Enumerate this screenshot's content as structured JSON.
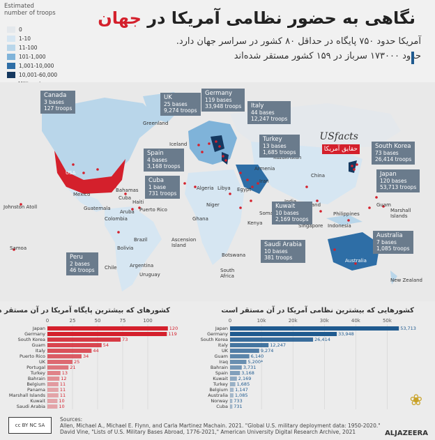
{
  "legend": {
    "title_line1": "Estimated",
    "title_line2": "number of troops",
    "items": [
      {
        "label": "0",
        "color": "#e4e8ec"
      },
      {
        "label": "1-10",
        "color": "#d6e6f2"
      },
      {
        "label": "11-100",
        "color": "#b9d6ea"
      },
      {
        "label": "101-1,000",
        "color": "#7fb3d9"
      },
      {
        "label": "1,001-10,000",
        "color": "#2e6ea6"
      },
      {
        "label": "10,001-60,000",
        "color": "#15385f"
      }
    ],
    "bases_label": "Military bases",
    "usa_color": "#d4202c"
  },
  "header": {
    "title_main": "نگاهی به حضور نظامی آمریکا در",
    "title_highlight": "جهان",
    "line1": "آمریکا حدود ۷۵۰ پایگاه در حداقل ۸۰ کشور در سراسر جهان دارد.",
    "line2": "حدود ۱۷۳۰۰۰ سرباز در ۱۵۹ کشور مستقر شده‌اند"
  },
  "map": {
    "cards": [
      {
        "country": "Canada",
        "bases": "3 bases",
        "troops": "127 troops"
      },
      {
        "country": "UK",
        "bases": "25 bases",
        "troops": "9,274 troops"
      },
      {
        "country": "Germany",
        "bases": "119 bases",
        "troops": "33,948 troops"
      },
      {
        "country": "Italy",
        "bases": "44 bases",
        "troops": "12,247 troops"
      },
      {
        "country": "Turkey",
        "bases": "13 bases",
        "troops": "1,685 troops"
      },
      {
        "country": "South Korea",
        "bases": "73 bases",
        "troops": "26,414 troops"
      },
      {
        "country": "Spain",
        "bases": "4 bases",
        "troops": "3,168 troops"
      },
      {
        "country": "Cuba",
        "bases": "1 base",
        "troops": "731 troops"
      },
      {
        "country": "Japan",
        "bases": "120 bases",
        "troops": "53,713 troops"
      },
      {
        "country": "Kuwait",
        "bases": "10 bases",
        "troops": "2,169 troops"
      },
      {
        "country": "Saudi Arabia",
        "bases": "10 bases",
        "troops": "381 troops"
      },
      {
        "country": "Australia",
        "bases": "7 bases",
        "troops": "1,085 troops"
      },
      {
        "country": "Peru",
        "bases": "2 bases",
        "troops": "46 troops"
      }
    ],
    "places": [
      "Greenland",
      "Iceland",
      "USA",
      "Mexico",
      "Bahamas",
      "Cuba",
      "Haiti",
      "Guatemala",
      "Colombia",
      "Puerto Rico",
      "Aruba",
      "Johnston Atoll",
      "Samoa",
      "Brazil",
      "Bolivia",
      "Chile",
      "Argentina",
      "Uruguay",
      "Ascension Island",
      "Algeria",
      "Libya",
      "Niger",
      "Ghana",
      "Egypt",
      "Iran",
      "Armenia",
      "Kazakhstan",
      "China",
      "Thailand",
      "Singapore",
      "Philippines",
      "Indonesia",
      "Guam",
      "Marshall Islands",
      "Kenya",
      "Somalia",
      "Botswana",
      "South Africa",
      "Australia",
      "New Zealand",
      "India"
    ],
    "brand_top": "USfacts",
    "brand_box": "حقایق آمریکا"
  },
  "chart_data": [
    {
      "type": "bar",
      "title": "کشورهای که بیشترین پایگاه آمریکا در آن مستقر هست",
      "categories": [
        "Japan",
        "Germany",
        "South Korea",
        "Guam",
        "Italy",
        "Puerto Rico",
        "UK",
        "Portugal",
        "Turkey",
        "Bahrain",
        "Belgium",
        "Panama",
        "Marshall Islands",
        "Kuwait",
        "Saudi Arabia"
      ],
      "values": [
        120,
        119,
        73,
        54,
        44,
        34,
        25,
        21,
        13,
        12,
        11,
        11,
        11,
        10,
        10
      ],
      "xticks": [
        0,
        25,
        50,
        75,
        100
      ],
      "xlim": [
        0,
        125
      ],
      "color": "#d4202c"
    },
    {
      "type": "bar",
      "title": "کشورهایی که بیشترین نظامی آمریکا در آن مستقر است",
      "categories": [
        "Japan",
        "Germany",
        "South Korea",
        "Italy",
        "UK",
        "Guam",
        "Iraq",
        "Bahrain",
        "Spain",
        "Kuwait",
        "Turkey",
        "Belgium",
        "Australia",
        "Norway",
        "Cuba"
      ],
      "values": [
        53713,
        33948,
        26414,
        12247,
        9274,
        6140,
        5200,
        3731,
        3168,
        2169,
        1685,
        1147,
        1085,
        733,
        731
      ],
      "value_labels": [
        "53,713",
        "33,948",
        "26,414",
        "12,247",
        "9,274",
        "6,140",
        "5,200*",
        "3,731",
        "3,168",
        "2,169",
        "1,685",
        "1,147",
        "1,085",
        "733",
        "731"
      ],
      "xticks": [
        "0",
        "10k",
        "20k",
        "30k",
        "40k",
        "50k"
      ],
      "xlim": [
        0,
        55000
      ],
      "color": "#1f5a8f"
    }
  ],
  "sources": {
    "label": "Sources:",
    "line1": "Allen, Michael A., Michael E. Flynn, and Carla Martinez Machain. 2021. \"Global U.S. military deployment data: 1950-2020.\"",
    "line2": "David Vine, \"Lists of U.S. Military Bases Abroad, 1776-2021,\" American University Digital Research Archive, 2021"
  },
  "license": "cc BY NC SA",
  "brand": "ALJAZEERA"
}
